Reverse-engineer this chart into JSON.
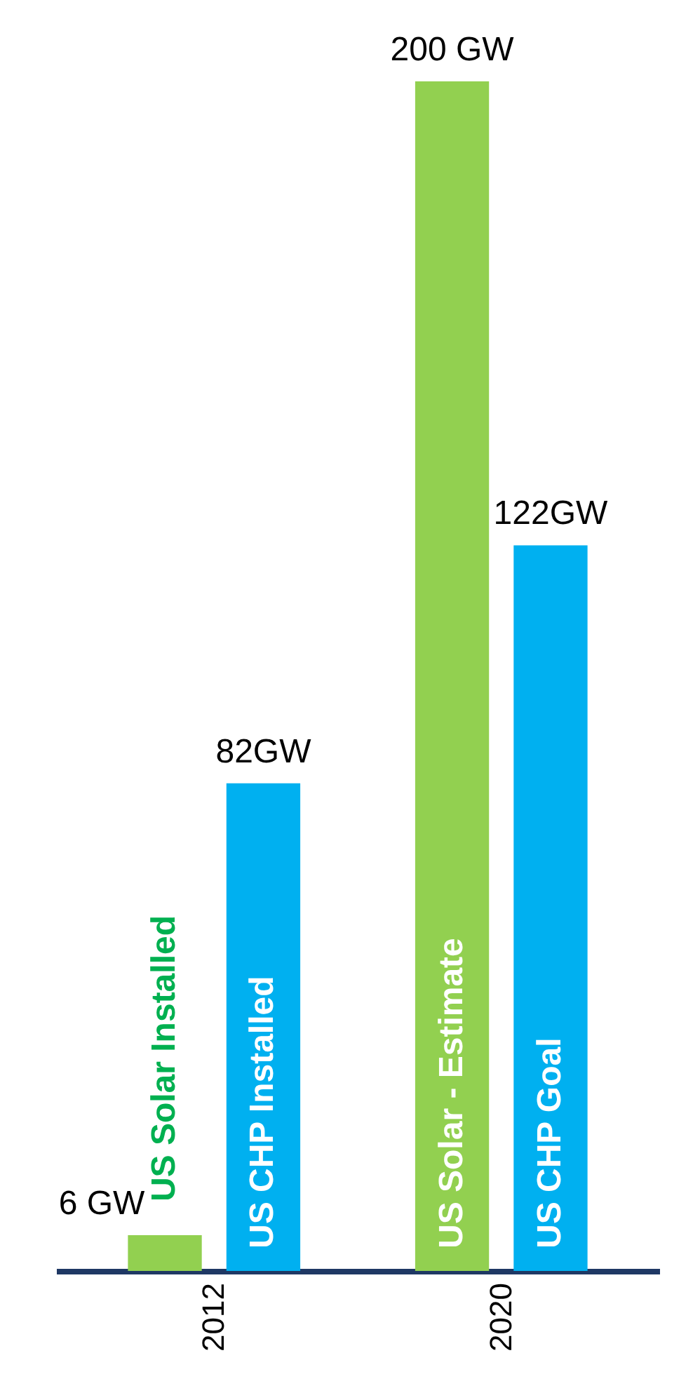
{
  "chart_data": {
    "type": "bar",
    "categories": [
      "2012",
      "2020"
    ],
    "series": [
      {
        "color": "#92d050",
        "values": [
          6,
          200
        ],
        "value_labels": [
          "6 GW",
          "200 GW"
        ]
      },
      {
        "color": "#00b0f0",
        "values": [
          82,
          122
        ],
        "value_labels": [
          "82GW",
          "122GW"
        ]
      }
    ],
    "annotations": [
      "US Solar Installed",
      "US CHP Installed",
      "US Solar - Estimate",
      "US CHP Goal"
    ]
  }
}
